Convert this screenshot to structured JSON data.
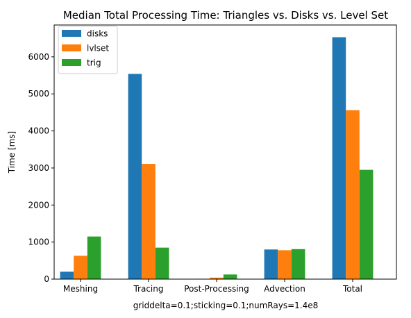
{
  "chart_data": {
    "type": "bar",
    "title": "Median Total Processing Time: Triangles vs. Disks vs. Level Set",
    "xlabel": "griddelta=0.1;sticking=0.1;numRays=1.4e8",
    "ylabel": "Time [ms]",
    "categories": [
      "Meshing",
      "Tracing",
      "Post-Processing",
      "Advection",
      "Total"
    ],
    "series": [
      {
        "name": "disks",
        "color": "#1f77b4",
        "values": [
          200,
          5540,
          10,
          800,
          6530
        ]
      },
      {
        "name": "lvlset",
        "color": "#ff7f0e",
        "values": [
          630,
          3110,
          40,
          780,
          4560
        ]
      },
      {
        "name": "trig",
        "color": "#2ca02c",
        "values": [
          1150,
          850,
          125,
          810,
          2950
        ]
      }
    ],
    "ylim": [
      0,
      6860
    ],
    "yticks": [
      "0",
      "1000",
      "2000",
      "3000",
      "4000",
      "5000",
      "6000"
    ],
    "grid": false,
    "legend_position": "top-left"
  }
}
